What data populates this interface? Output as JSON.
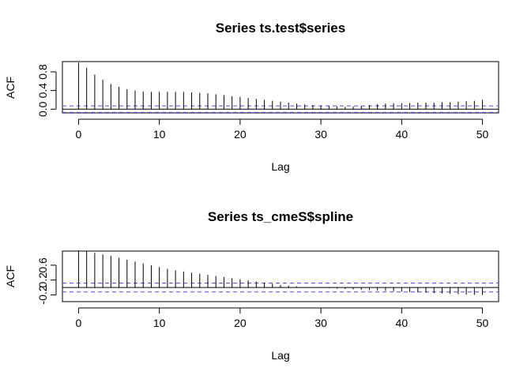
{
  "chart_data": [
    {
      "type": "bar",
      "title": "Series  ts.test$series",
      "xlabel": "Lag",
      "ylabel": "ACF",
      "xlim": [
        -2,
        52
      ],
      "ylim": [
        -0.08,
        1.02
      ],
      "xticks": [
        0,
        10,
        20,
        30,
        40,
        50
      ],
      "yticks": [
        0.0,
        0.4,
        0.8
      ],
      "ytick_labels": [
        "0.0",
        "0.4",
        "0.8"
      ],
      "ci": [
        0.07,
        -0.07
      ],
      "lags": [
        0,
        1,
        2,
        3,
        4,
        5,
        6,
        7,
        8,
        9,
        10,
        11,
        12,
        13,
        14,
        15,
        16,
        17,
        18,
        19,
        20,
        21,
        22,
        23,
        24,
        25,
        26,
        27,
        28,
        29,
        30,
        31,
        32,
        33,
        34,
        35,
        36,
        37,
        38,
        39,
        40,
        41,
        42,
        43,
        44,
        45,
        46,
        47,
        48,
        49,
        50
      ],
      "values": [
        1.0,
        0.89,
        0.74,
        0.63,
        0.54,
        0.48,
        0.43,
        0.4,
        0.38,
        0.37,
        0.37,
        0.37,
        0.37,
        0.37,
        0.36,
        0.35,
        0.34,
        0.32,
        0.3,
        0.28,
        0.26,
        0.24,
        0.22,
        0.2,
        0.18,
        0.16,
        0.14,
        0.12,
        0.1,
        0.09,
        0.08,
        0.07,
        0.06,
        0.05,
        0.06,
        0.07,
        0.09,
        0.11,
        0.12,
        0.13,
        0.13,
        0.13,
        0.14,
        0.14,
        0.14,
        0.15,
        0.15,
        0.16,
        0.17,
        0.18,
        0.2
      ]
    },
    {
      "type": "bar",
      "title": "Series  ts_cmeS$spline",
      "xlabel": "Lag",
      "ylabel": "ACF",
      "xlim": [
        -2,
        52
      ],
      "ylim": [
        -0.38,
        0.98
      ],
      "xticks": [
        0,
        10,
        20,
        30,
        40,
        50
      ],
      "yticks": [
        -0.2,
        0.2,
        0.6
      ],
      "ytick_labels": [
        "-0.2",
        "0.2",
        "0.6"
      ],
      "ci": [
        0.12,
        -0.12
      ],
      "lags": [
        0,
        1,
        2,
        3,
        4,
        5,
        6,
        7,
        8,
        9,
        10,
        11,
        12,
        13,
        14,
        15,
        16,
        17,
        18,
        19,
        20,
        21,
        22,
        23,
        24,
        25,
        26,
        27,
        28,
        29,
        30,
        31,
        32,
        33,
        34,
        35,
        36,
        37,
        38,
        39,
        40,
        41,
        42,
        43,
        44,
        45,
        46,
        47,
        48,
        49,
        50
      ],
      "values": [
        1.0,
        0.97,
        0.93,
        0.89,
        0.85,
        0.8,
        0.75,
        0.7,
        0.65,
        0.6,
        0.55,
        0.5,
        0.46,
        0.43,
        0.4,
        0.37,
        0.34,
        0.31,
        0.28,
        0.25,
        0.22,
        0.19,
        0.16,
        0.13,
        0.1,
        0.07,
        0.05,
        0.03,
        0.01,
        0.0,
        -0.01,
        -0.02,
        -0.03,
        -0.04,
        -0.05,
        -0.06,
        -0.07,
        -0.08,
        -0.09,
        -0.1,
        -0.11,
        -0.12,
        -0.13,
        -0.14,
        -0.15,
        -0.16,
        -0.17,
        -0.18,
        -0.19,
        -0.2,
        -0.2
      ]
    }
  ]
}
